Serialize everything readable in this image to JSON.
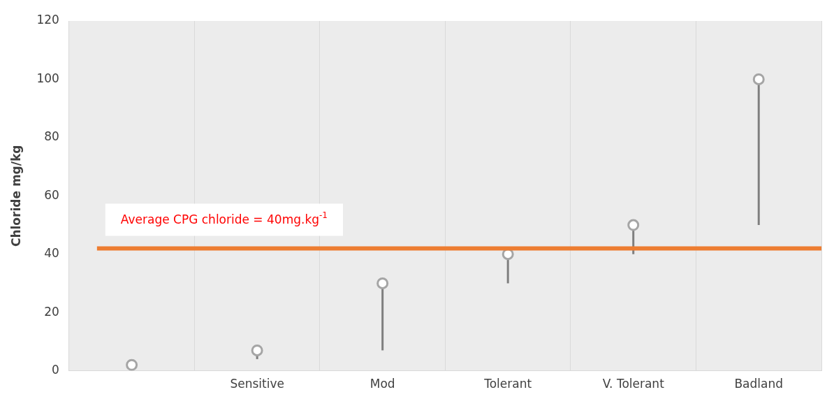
{
  "chart_data": {
    "type": "scatter",
    "ylabel": "Chloride mg/kg",
    "categories": [
      null,
      "Sensitive",
      "Mod",
      "Tolerant",
      "V. Tolerant",
      "Badland"
    ],
    "series": [
      {
        "color": "#a5a5a5",
        "marker": "circle",
        "values": [
          2,
          7,
          30,
          40,
          50,
          100
        ],
        "errors": [
          null,
          [
            4,
            7
          ],
          [
            7,
            30
          ],
          [
            30,
            40
          ],
          [
            40,
            50
          ],
          [
            50,
            100
          ]
        ]
      }
    ],
    "ylim": [
      0,
      120
    ],
    "yticks": [
      0,
      20,
      40,
      60,
      80,
      100,
      120
    ],
    "grid": "x",
    "ref_lines": [
      {
        "axis": "y",
        "value": 42,
        "color": "#ed7d31"
      }
    ],
    "annotations": [
      "Average CPG chloride = 40mg.kg$^{-1}$"
    ]
  }
}
